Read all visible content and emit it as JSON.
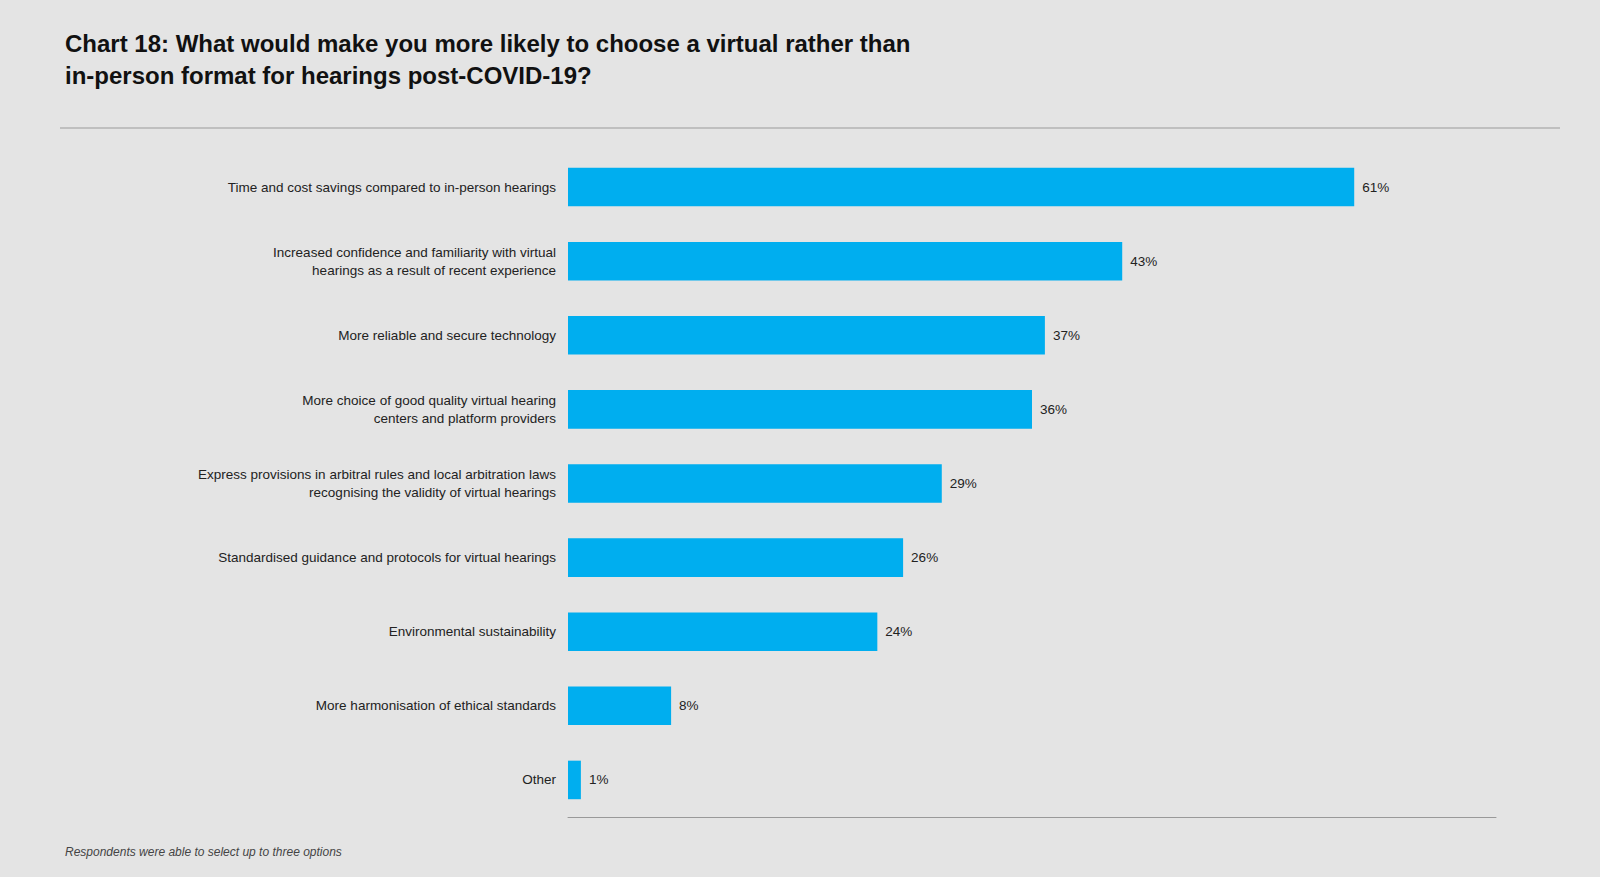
{
  "chart_data": {
    "type": "bar",
    "orientation": "horizontal",
    "title": "Chart 18: What would make you more likely to choose a virtual rather than\nin-person format for hearings post-COVID-19?",
    "categories": [
      "Time and cost savings compared to in-person hearings",
      "Increased confidence and familiarity with virtual\nhearings as a result of recent experience",
      "More reliable and secure technology",
      "More choice of good quality virtual hearing\ncenters and platform providers",
      "Express provisions in arbitral rules and local arbitration laws\nrecognising the validity of virtual hearings",
      "Standardised guidance and protocols for virtual hearings",
      "Environmental sustainability",
      "More harmonisation of ethical standards",
      "Other"
    ],
    "values": [
      61,
      43,
      37,
      36,
      29,
      26,
      24,
      8,
      1
    ],
    "value_labels": [
      "61%",
      "43%",
      "37%",
      "36%",
      "29%",
      "26%",
      "24%",
      "8%",
      "1%"
    ],
    "data_labels": true,
    "color": "#00AEEF",
    "xlim": [
      0,
      72
    ],
    "tick_labels": "y",
    "grid": false,
    "annotations": [
      "Respondents were able to select up to three options"
    ]
  }
}
